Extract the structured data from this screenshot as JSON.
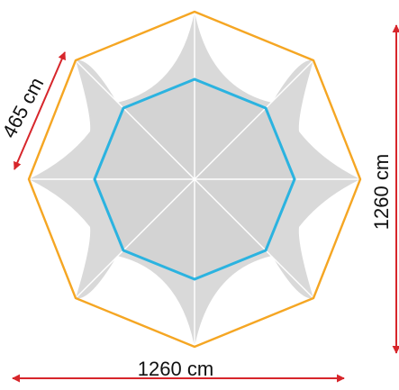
{
  "labels": {
    "width": "1260 cm",
    "height": "1260 cm",
    "side": "465 cm"
  },
  "colors": {
    "outer_octagon": "#F5A623",
    "inner_octagon": "#2BB3E0",
    "canopy_fill": "#D9D9D9",
    "ribs": "#FFFFFF",
    "dimension_arrows": "#D7262B",
    "background": "#FFFFFF"
  }
}
